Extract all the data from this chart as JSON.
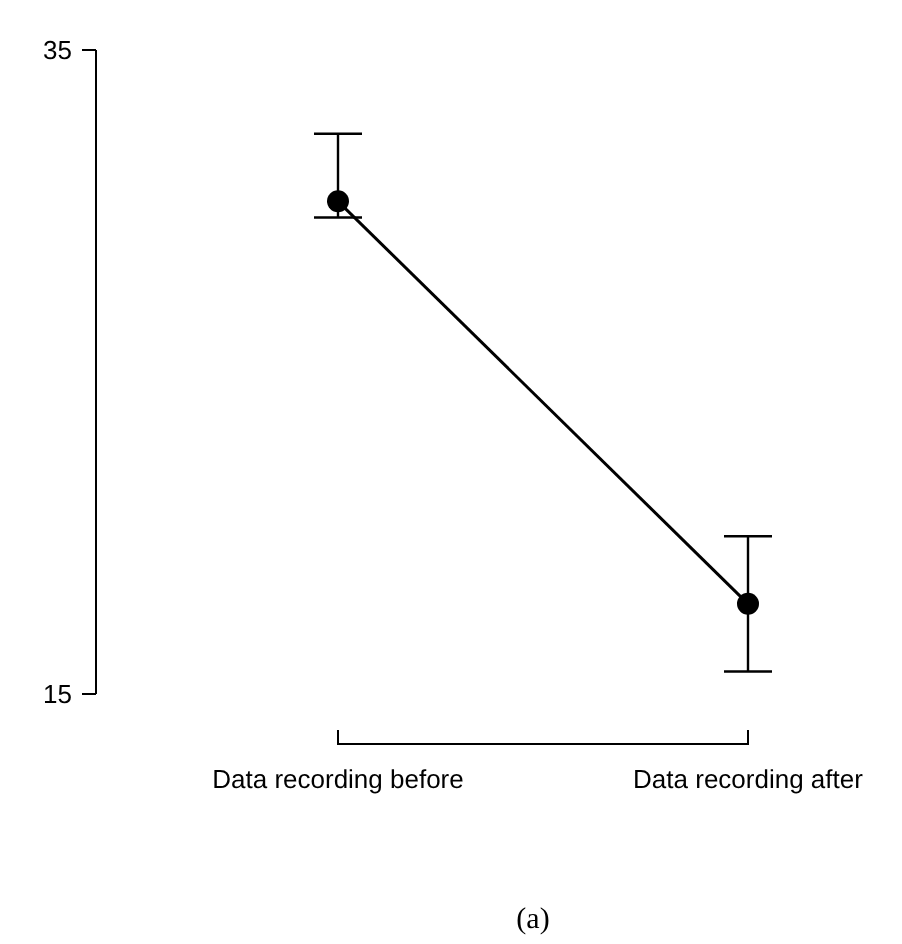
{
  "chart_data": {
    "type": "line",
    "categories": [
      "Data recording before",
      "Data recording after"
    ],
    "values": [
      30.3,
      17.8
    ],
    "errors": [
      [
        29.8,
        32.4
      ],
      [
        15.7,
        19.9
      ]
    ],
    "color": "#000000",
    "marker": "circle",
    "ylim": [
      15,
      35
    ],
    "yticks": [
      15,
      35
    ],
    "annotations": [
      "(a)"
    ]
  }
}
